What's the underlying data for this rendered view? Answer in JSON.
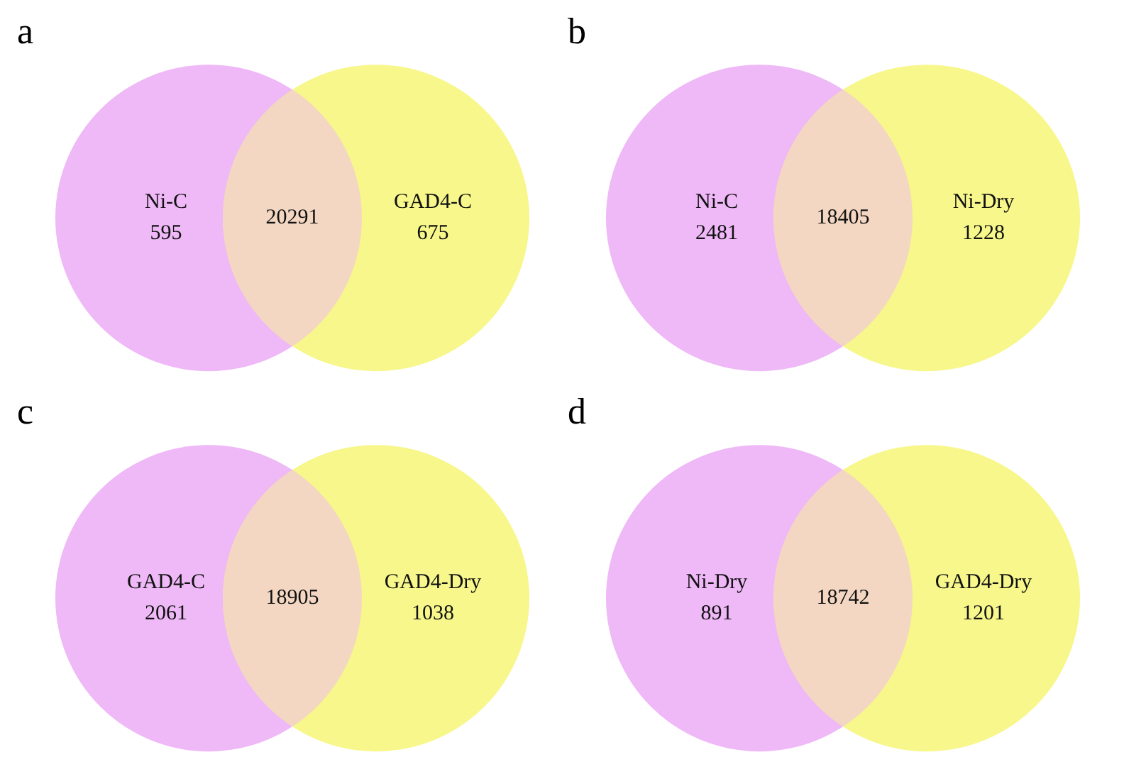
{
  "chart_data": [
    {
      "type": "other",
      "data_labels": true,
      "title": "a",
      "categories": [
        "Ni-C",
        "GAD4-C"
      ],
      "values": [
        595,
        675
      ],
      "colors": [
        "#efb8f7",
        "#f7f78c"
      ],
      "annotations": [
        "20291"
      ]
    },
    {
      "type": "other",
      "data_labels": true,
      "title": "b",
      "categories": [
        "Ni-C",
        "Ni-Dry"
      ],
      "values": [
        2481,
        1228
      ],
      "colors": [
        "#efb8f7",
        "#f7f78c"
      ],
      "annotations": [
        "18405"
      ]
    },
    {
      "type": "other",
      "data_labels": true,
      "title": "c",
      "categories": [
        "GAD4-C",
        "GAD4-Dry"
      ],
      "values": [
        2061,
        1038
      ],
      "colors": [
        "#efb8f7",
        "#f7f78c"
      ],
      "annotations": [
        "18905"
      ]
    },
    {
      "type": "other",
      "data_labels": true,
      "title": "d",
      "categories": [
        "Ni-Dry",
        "GAD4-Dry"
      ],
      "values": [
        891,
        1201
      ],
      "colors": [
        "#efb8f7",
        "#f7f78c"
      ],
      "annotations": [
        "18742"
      ]
    }
  ]
}
